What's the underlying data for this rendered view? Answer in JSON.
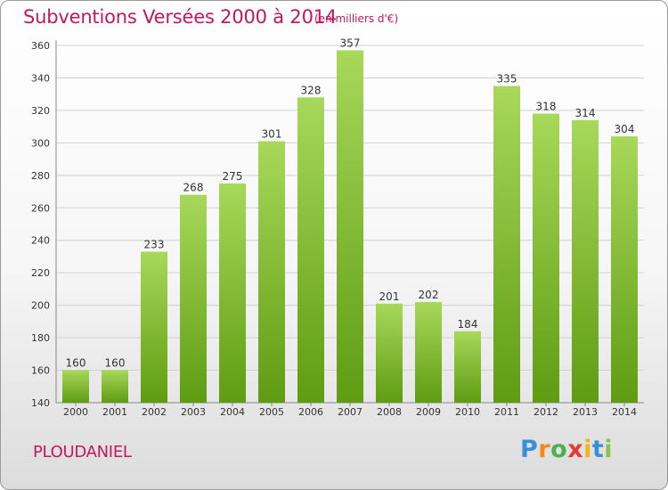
{
  "title": "Subventions Versées 2000 à 2014",
  "subtitle": "(en milliers d'€)",
  "commune": "PLOUDANIEL",
  "logo": {
    "letters": [
      "P",
      "r",
      "o",
      "x",
      "i",
      "t",
      "i"
    ],
    "colors": [
      "#3a8fd8",
      "#f08a1c",
      "#4caf50",
      "#e53935",
      "#f0b41c",
      "#3a8fd8",
      "#8bc34a"
    ]
  },
  "colors": {
    "bar_top": "#a8d85a",
    "bar_bottom": "#5e9c12",
    "title": "#c2185b"
  },
  "chart_data": {
    "type": "bar",
    "categories": [
      "2000",
      "2001",
      "2002",
      "2003",
      "2004",
      "2005",
      "2006",
      "2007",
      "2008",
      "2009",
      "2010",
      "2011",
      "2012",
      "2013",
      "2014"
    ],
    "values": [
      160,
      160,
      233,
      268,
      275,
      301,
      328,
      357,
      201,
      202,
      184,
      335,
      318,
      314,
      304
    ],
    "ylim": [
      140,
      360
    ],
    "yticks": [
      140,
      160,
      180,
      200,
      220,
      240,
      260,
      280,
      300,
      320,
      340,
      360
    ],
    "grid": true,
    "xlabel": "",
    "ylabel": ""
  }
}
